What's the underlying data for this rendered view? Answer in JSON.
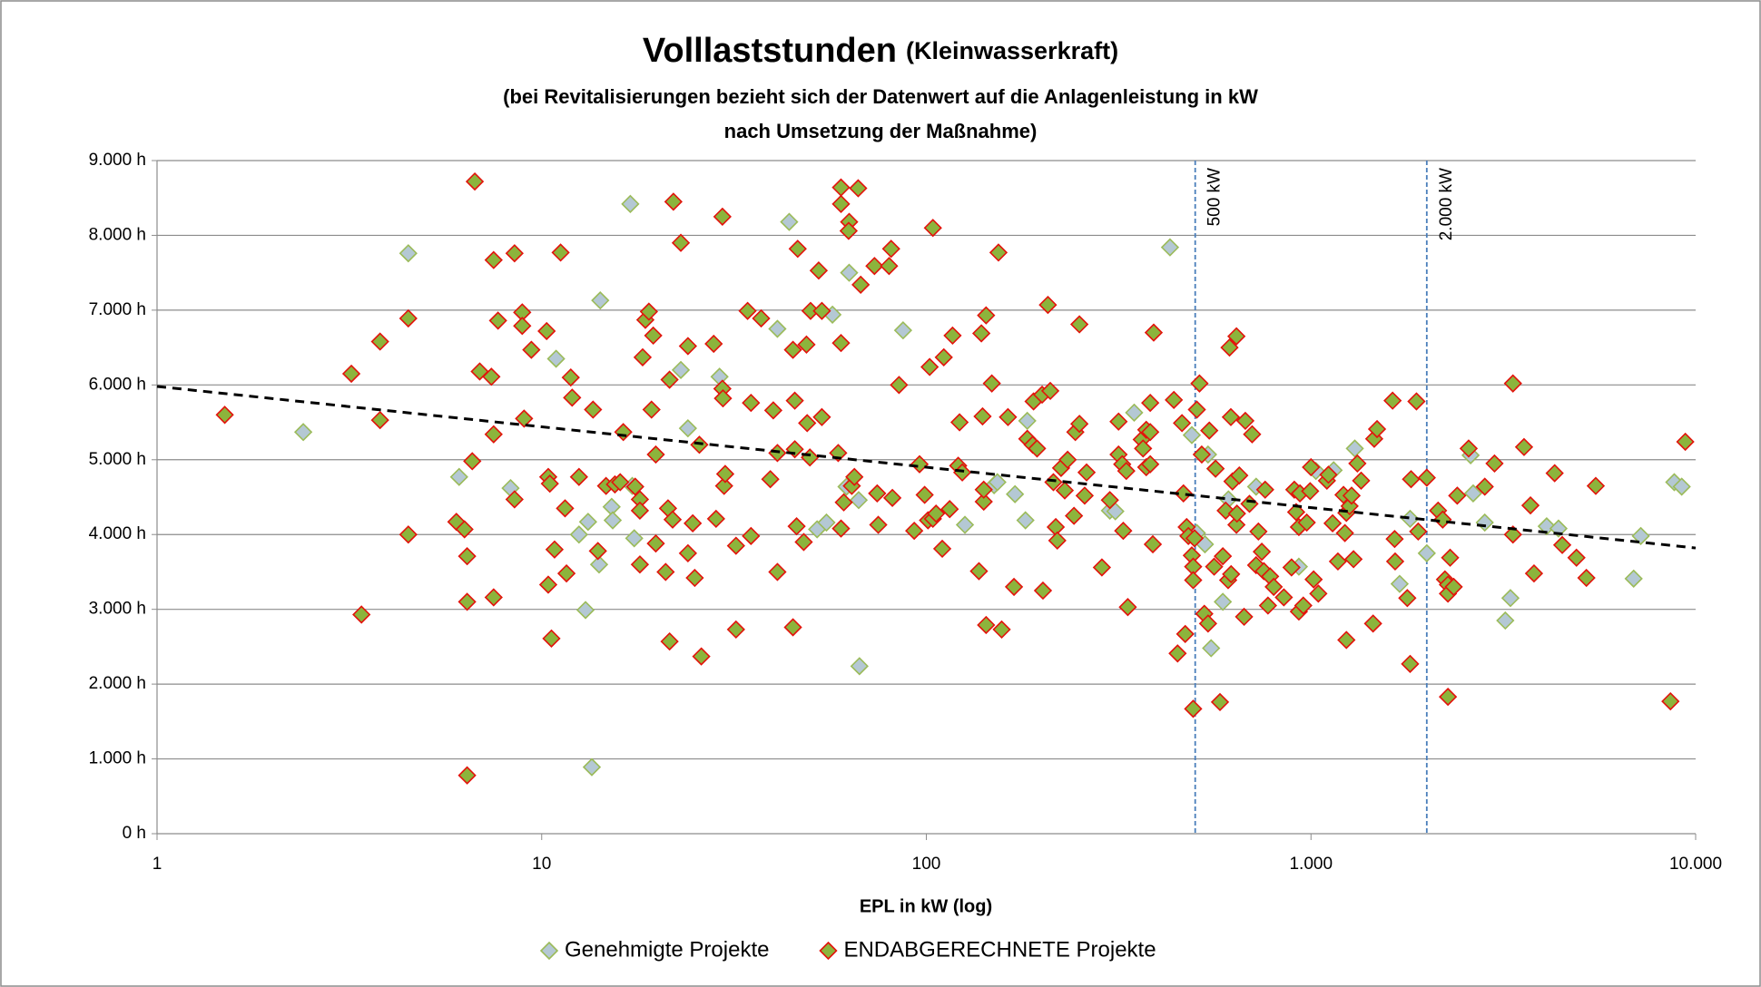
{
  "chart_data": {
    "type": "scatter",
    "title": "Volllaststunden",
    "title_suffix": "(Kleinwasserkraft)",
    "subtitle": [
      "(bei Revitalisierungen bezieht sich der Datenwert auf die Anlagenleistung in kW",
      "nach Umsetzung der Maßnahme)"
    ],
    "x_label": "EPL in kW (log)",
    "x_scale": "log",
    "xlim": [
      1,
      10000
    ],
    "xticks": [
      1,
      10,
      100,
      {
        "value": 1000,
        "label": "1.000"
      },
      {
        "value": 10000,
        "label": "10.000"
      }
    ],
    "ylim": [
      0,
      9000
    ],
    "yticks": [
      {
        "value": 0,
        "label": "0 h"
      },
      {
        "value": 1000,
        "label": "1.000 h"
      },
      {
        "value": 2000,
        "label": "2.000 h"
      },
      {
        "value": 3000,
        "label": "3.000 h"
      },
      {
        "value": 4000,
        "label": "4.000 h"
      },
      {
        "value": 5000,
        "label": "5.000 h"
      },
      {
        "value": 6000,
        "label": "6.000 h"
      },
      {
        "value": 7000,
        "label": "7.000 h"
      },
      {
        "value": 8000,
        "label": "8.000 h"
      },
      {
        "value": 9000,
        "label": "9.000 h"
      }
    ],
    "grid": true,
    "legend": "bottom",
    "series": [
      {
        "name": "Genehmigte Projekte",
        "color": "#b4c8d4",
        "edgecolor": "#9bbb59",
        "x": [
          2.4,
          4.5,
          6.1,
          8.3,
          10.9,
          12.5,
          13,
          13.2,
          13.5,
          14.2,
          14.1,
          15.2,
          15.3,
          17,
          17.2,
          17.4,
          23,
          24,
          29,
          41,
          44,
          52,
          55,
          57,
          62,
          63,
          66.7,
          67,
          87,
          126,
          150,
          153,
          170,
          181,
          183,
          300,
          310,
          347,
          430,
          490,
          505,
          530,
          540,
          550,
          564,
          590,
          610,
          720,
          930,
          1030,
          1145,
          1300,
          1700,
          1810,
          2000,
          2600,
          2640,
          2830,
          3200,
          3300,
          4100,
          4400,
          6900,
          7200,
          8800,
          9200
        ],
        "values": [
          5370,
          7760,
          4770,
          4620,
          6350,
          4000,
          2990,
          4170,
          890,
          7130,
          3600,
          4370,
          4190,
          8420,
          4650,
          3950,
          6200,
          5420,
          6110,
          6750,
          8180,
          4070,
          4160,
          6940,
          4640,
          7500,
          4460,
          2240,
          6730,
          4130,
          4660,
          4700,
          4540,
          4190,
          5520,
          4320,
          4310,
          5630,
          7840,
          5330,
          4020,
          3870,
          5070,
          2480,
          4880,
          3100,
          4470,
          4640,
          3570,
          4850,
          4860,
          5150,
          3340,
          4210,
          3750,
          5060,
          4550,
          4160,
          2850,
          3150,
          4110,
          4080,
          3410,
          3980,
          4700,
          4640
        ]
      },
      {
        "name": "ENDABGERECHNETE Projekte",
        "color": "#8cb43c",
        "edgecolor": "#e3120b",
        "x": [
          1.5,
          3.2,
          3.4,
          3.8,
          3.8,
          4.5,
          4.5,
          6,
          6.3,
          6.4,
          6.4,
          6.4,
          6.7,
          6.6,
          6.9,
          7.4,
          7.5,
          7.5,
          7.5,
          7.7,
          8.5,
          8.5,
          8.9,
          8.9,
          9,
          9.4,
          10.3,
          10.4,
          10.5,
          10.4,
          10.6,
          10.8,
          11.2,
          11.5,
          11.6,
          11.9,
          12,
          12.5,
          13.6,
          14,
          14.7,
          15.5,
          16,
          16.3,
          17.5,
          18,
          18,
          18,
          18.3,
          18.6,
          19,
          19.5,
          19.3,
          19.8,
          19.8,
          21,
          21.5,
          21.3,
          21.5,
          22,
          21.9,
          23,
          24,
          24,
          24.7,
          25,
          25.7,
          26,
          28,
          28.4,
          29.5,
          29.5,
          29.6,
          29.8,
          30,
          32,
          32,
          34.3,
          35,
          35,
          37.2,
          39.3,
          40,
          41,
          41,
          45,
          45.5,
          45.5,
          46,
          45,
          46.3,
          48,
          48.8,
          49,
          49.8,
          50,
          52.5,
          53.5,
          53.5,
          59,
          60,
          60,
          60,
          60,
          61,
          63,
          62.8,
          64,
          65,
          66.5,
          67.5,
          73.3,
          74.5,
          75,
          80,
          81,
          81.6,
          84.9,
          93,
          96,
          99,
          101,
          102,
          104,
          104,
          106,
          110,
          111,
          115,
          117,
          121,
          122,
          124,
          137,
          139,
          140,
          141,
          141,
          143,
          143,
          148,
          154,
          157,
          163,
          169,
          183,
          189,
          190,
          194,
          200,
          201,
          207,
          210,
          214,
          217,
          219,
          224,
          229,
          233,
          242,
          244,
          250,
          250,
          258,
          261,
          286,
          300,
          316,
          316,
          323,
          325,
          331,
          334,
          363,
          366,
          373,
          373,
          382,
          382,
          382,
          388,
          390,
          440,
          450,
          462,
          471,
          466,
          475,
          480,
          490,
          494,
          498,
          494,
          494,
          505,
          513,
          520,
          528,
          540,
          544,
          560,
          565,
          580,
          590,
          600,
          609,
          614,
          619,
          620,
          625,
          640,
          640,
          642,
          651,
          670,
          675,
          692,
          703,
          720,
          730,
          745,
          754,
          760,
          773,
          783,
          800,
          850,
          890,
          905,
          915,
          930,
          936,
          930,
          955,
          975,
          995,
          1000,
          1016,
          1045,
          1100,
          1110,
          1138,
          1175,
          1215,
          1225,
          1236,
          1236,
          1260,
          1275,
          1290,
          1320,
          1350,
          1450,
          1460,
          1485,
          1630,
          1655,
          1650,
          1780,
          1810,
          1820,
          1880,
          1900,
          2000,
          2140,
          2200,
          2230,
          2270,
          2270,
          2300,
          2270,
          2350,
          2400,
          2570,
          2830,
          3000,
          3350,
          3350,
          3580,
          3720,
          3800,
          4300,
          4500,
          4900,
          5200,
          5500,
          8600,
          9400
        ],
        "values": [
          5600,
          6150,
          2930,
          5530,
          6580,
          6890,
          4000,
          4170,
          4070,
          3710,
          3100,
          780,
          8720,
          4980,
          6180,
          6110,
          7670,
          5340,
          3160,
          6860,
          7760,
          4470,
          6970,
          6790,
          5550,
          6470,
          6720,
          4770,
          4680,
          3330,
          2610,
          3800,
          7770,
          4350,
          3480,
          6100,
          5830,
          4770,
          5670,
          3780,
          4650,
          4670,
          4700,
          5370,
          4640,
          4470,
          4320,
          3600,
          6370,
          6870,
          6980,
          6660,
          5670,
          5070,
          3880,
          3500,
          6070,
          4350,
          2570,
          8450,
          4200,
          7900,
          6520,
          3750,
          4150,
          3420,
          5200,
          2370,
          6550,
          4210,
          8250,
          5950,
          5820,
          4650,
          4810,
          3850,
          2730,
          6990,
          5760,
          3980,
          6890,
          4740,
          5660,
          5090,
          3500,
          6470,
          5790,
          5140,
          4110,
          2760,
          7820,
          3900,
          6540,
          5490,
          5030,
          6990,
          7530,
          5570,
          6990,
          5090,
          8640,
          8420,
          6560,
          4080,
          4430,
          8180,
          8060,
          4650,
          4770,
          8630,
          7340,
          7590,
          4550,
          4130,
          7590,
          7820,
          4490,
          6000,
          4050,
          4940,
          4530,
          4190,
          6240,
          8100,
          4210,
          4280,
          3810,
          6370,
          4340,
          6660,
          4920,
          5500,
          4830,
          3510,
          6690,
          5580,
          4440,
          4600,
          2790,
          6930,
          6020,
          7770,
          2730,
          5570,
          3300,
          5280,
          5200,
          5780,
          5150,
          5870,
          3250,
          7070,
          5920,
          4700,
          4100,
          3920,
          4890,
          4590,
          5000,
          4250,
          5370,
          5480,
          6810,
          4520,
          4830,
          3560,
          4460,
          5510,
          5070,
          4940,
          4050,
          4850,
          3030,
          5270,
          5150,
          5400,
          4900,
          5370,
          4940,
          5760,
          3870,
          6700,
          5800,
          2410,
          5490,
          2670,
          4550,
          4100,
          3980,
          3720,
          3570,
          3950,
          3390,
          1670,
          5670,
          6020,
          5070,
          2940,
          2810,
          5390,
          3570,
          4880,
          1760,
          3710,
          4320,
          3390,
          6500,
          5570,
          3470,
          4710,
          4130,
          6650,
          4280,
          4790,
          2900,
          5520,
          4410,
          5340,
          3590,
          4040,
          3770,
          3510,
          4600,
          3050,
          3440,
          3300,
          3160,
          3560,
          4600,
          4300,
          4100,
          4550,
          2970,
          3050,
          4160,
          4580,
          4900,
          3400,
          3210,
          4720,
          4800,
          4150,
          3640,
          4530,
          4020,
          4290,
          2590,
          4380,
          4520,
          3670,
          4950,
          4720,
          2810,
          5280,
          5410,
          5790,
          3640,
          3940,
          3150,
          2270,
          4740,
          5780,
          4040,
          4760,
          4320,
          4200,
          3400,
          3330,
          3210,
          3690,
          1830,
          3300,
          4520,
          5150,
          4640,
          4950,
          6020,
          4000,
          5170,
          4390,
          3480,
          4820,
          3860,
          3690,
          3420,
          4650,
          1770,
          5240
        ]
      }
    ],
    "trendline": {
      "x": [
        1,
        10000
      ],
      "values": [
        5980,
        3820
      ]
    },
    "annotations": [
      {
        "x": 500,
        "label": "500 kW"
      },
      {
        "x": 2000,
        "label": "2.000 kW"
      }
    ]
  }
}
